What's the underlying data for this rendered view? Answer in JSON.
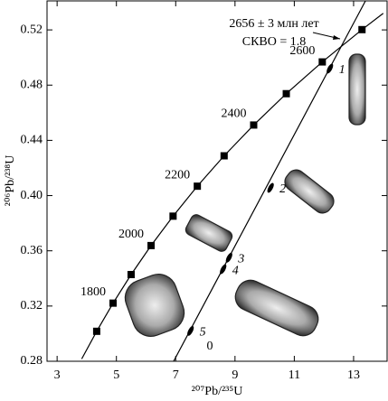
{
  "chart_data": {
    "type": "scatter",
    "x_label": "²⁰⁷Pb/²³⁵U",
    "y_label": "²⁰⁶Pb/²³⁸U",
    "xlim": [
      2.66,
      14.13
    ],
    "ylim": [
      0.28,
      0.541
    ],
    "xticks": [
      3,
      5,
      7,
      9,
      11,
      13
    ],
    "yticks": [
      0.28,
      0.32,
      0.36,
      {
        "value": 0.4,
        "label": "0.40"
      },
      0.44,
      0.48,
      0.52
    ],
    "annotation": [
      "2656 ± 3 млн лет",
      "СКВО = 1.8"
    ],
    "lower_intercept_label": "0",
    "series": [
      {
        "name": "concordia-curve",
        "color": "#000",
        "x": [
          3.83,
          4.335,
          4.887,
          5.496,
          6.169,
          6.911,
          7.729,
          8.633,
          9.63,
          10.73,
          11.944,
          13.283,
          14.0
        ],
        "values": [
          0.2817,
          0.3017,
          0.3221,
          0.3428,
          0.3638,
          0.3851,
          0.4068,
          0.4288,
          0.4511,
          0.4738,
          0.4968,
          0.5202,
          0.532
        ]
      },
      {
        "name": "concordia-ages",
        "color": "#000",
        "x": [
          4.335,
          4.887,
          5.496,
          6.169,
          6.911,
          7.729,
          8.633,
          9.63,
          10.73,
          11.944,
          13.283
        ],
        "values": [
          0.3017,
          0.3221,
          0.3428,
          0.3638,
          0.3851,
          0.4068,
          0.4288,
          0.4511,
          0.4738,
          0.4968,
          0.5202
        ],
        "labels": [
          null,
          "1800",
          null,
          "2000",
          null,
          "2200",
          null,
          "2400",
          null,
          "2600",
          null
        ]
      },
      {
        "name": "discordia",
        "color": "#000",
        "x": [
          6.93,
          13.4
        ],
        "values": [
          0.28,
          0.541
        ]
      },
      {
        "name": "zircons",
        "color": "#000",
        "x": [
          12.2,
          10.2,
          8.8,
          8.6,
          7.5
        ],
        "values": [
          0.492,
          0.4056,
          0.355,
          0.3467,
          0.302
        ],
        "labels": [
          "1",
          "2",
          "3",
          "4",
          "5"
        ]
      }
    ]
  }
}
